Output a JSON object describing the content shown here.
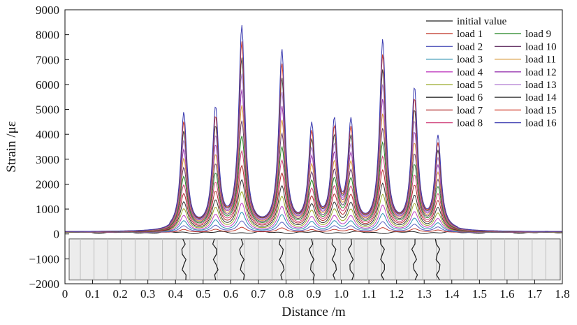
{
  "chart_data": {
    "type": "line",
    "title": "",
    "xlabel": "Distance /m",
    "ylabel": "Strain /με",
    "xlim": [
      0,
      1.8
    ],
    "ylim": [
      -2000,
      9000
    ],
    "x_ticks": [
      0,
      0.1,
      0.2,
      0.3,
      0.4,
      0.5,
      0.6,
      0.7,
      0.8,
      0.9,
      1.0,
      1.1,
      1.2,
      1.3,
      1.4,
      1.5,
      1.6,
      1.7,
      1.8
    ],
    "x_tick_labels": [
      "0",
      "0.1",
      "0.2",
      "0.3",
      "0.4",
      "0.5",
      "0.6",
      "0.7",
      "0.8",
      "0.9",
      "1.0",
      "1.1",
      "1.2",
      "1.3",
      "1.4",
      "1.5",
      "1.6",
      "1.7",
      "1.8"
    ],
    "y_ticks": [
      -2000,
      -1000,
      0,
      1000,
      2000,
      3000,
      4000,
      5000,
      6000,
      7000,
      8000,
      9000
    ],
    "y_tick_labels": [
      "−2000",
      "−1000",
      "0",
      "1000",
      "2000",
      "3000",
      "4000",
      "5000",
      "6000",
      "7000",
      "8000",
      "9000"
    ],
    "grid": false,
    "legend_position": "top-right",
    "baseline_strain": 60,
    "peaks": [
      {
        "x": 0.43,
        "strain_max": 4700
      },
      {
        "x": 0.545,
        "strain_max": 4800
      },
      {
        "x": 0.64,
        "strain_max": 8100
      },
      {
        "x": 0.785,
        "strain_max": 7150
      },
      {
        "x": 0.893,
        "strain_max": 4100
      },
      {
        "x": 0.975,
        "strain_max": 4200
      },
      {
        "x": 1.035,
        "strain_max": 4200
      },
      {
        "x": 1.15,
        "strain_max": 7550
      },
      {
        "x": 1.265,
        "strain_max": 5600
      },
      {
        "x": 1.35,
        "strain_max": 3700
      }
    ],
    "series": [
      {
        "name": "initial value",
        "color": "#222222",
        "load_fraction": 0.0
      },
      {
        "name": "load 1",
        "color": "#c0392b",
        "load_fraction": 0.04
      },
      {
        "name": "load 2",
        "color": "#5b5fbf",
        "load_fraction": 0.08
      },
      {
        "name": "load 3",
        "color": "#2a8fb0",
        "load_fraction": 0.13
      },
      {
        "name": "load 4",
        "color": "#c040c0",
        "load_fraction": 0.18
      },
      {
        "name": "load 5",
        "color": "#9aab2a",
        "load_fraction": 0.24
      },
      {
        "name": "load 6",
        "color": "#333333",
        "load_fraction": 0.3
      },
      {
        "name": "load 7",
        "color": "#b02a2a",
        "load_fraction": 0.37
      },
      {
        "name": "load 8",
        "color": "#d0407a",
        "load_fraction": 0.44
      },
      {
        "name": "load 9",
        "color": "#2a8a2a",
        "load_fraction": 0.51
      },
      {
        "name": "load 10",
        "color": "#6a3a6a",
        "load_fraction": 0.58
      },
      {
        "name": "load 11",
        "color": "#d89a3a",
        "load_fraction": 0.65
      },
      {
        "name": "load 12",
        "color": "#9a3ab0",
        "load_fraction": 0.72
      },
      {
        "name": "load 13",
        "color": "#b07ad0",
        "load_fraction": 0.79
      },
      {
        "name": "load 14",
        "color": "#444444",
        "load_fraction": 0.86
      },
      {
        "name": "load 15",
        "color": "#d03a2a",
        "load_fraction": 0.93
      },
      {
        "name": "load 16",
        "color": "#3a3ab0",
        "load_fraction": 1.0
      }
    ],
    "beam_inset": {
      "y_range": [
        -1850,
        -200
      ],
      "crack_x": [
        0.43,
        0.545,
        0.64,
        0.785,
        0.893,
        0.975,
        1.035,
        1.15,
        1.265,
        1.35
      ]
    }
  }
}
